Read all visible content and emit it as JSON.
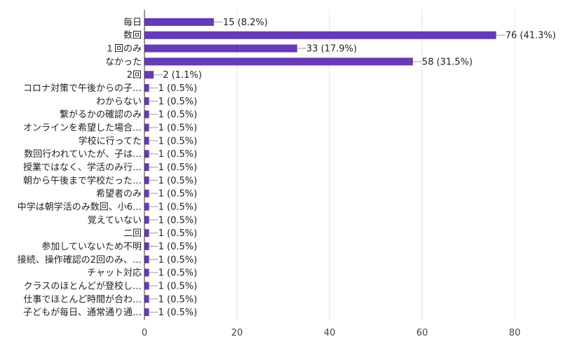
{
  "chart_data": {
    "type": "bar",
    "orientation": "horizontal",
    "title": "",
    "xlabel": "",
    "ylabel": "",
    "xlim": [
      0,
      80
    ],
    "x_ticks": [
      0,
      20,
      40,
      60,
      80
    ],
    "grid": true,
    "bar_color": "#673ab7",
    "categories": [
      "毎日",
      "数回",
      "１回のみ",
      "なかった",
      "2回",
      "コロナ対策で午後からの子…",
      "わからない",
      "繋がるかの確認のみ",
      "オンラインを希望した場合…",
      "学校に行ってた",
      "数回行われていたが、子は…",
      "授業ではなく、学活のみ行…",
      "朝から午後まで学校だった…",
      "希望者のみ",
      "中学は朝学活のみ数回、小6…",
      "覚えていない",
      "二回",
      "参加していないため不明",
      "接続、操作確認の2回のみ、…",
      "チャット対応",
      "クラスのほとんどが登校し…",
      "仕事でほとんど時間が合わ…",
      "子どもが毎日、通常通り通…"
    ],
    "values": [
      15,
      76,
      33,
      58,
      2,
      1,
      1,
      1,
      1,
      1,
      1,
      1,
      1,
      1,
      1,
      1,
      1,
      1,
      1,
      1,
      1,
      1,
      1
    ],
    "value_labels": [
      "15 (8.2%)",
      "76 (41.3%)",
      "33 (17.9%)",
      "58 (31.5%)",
      "2 (1.1%)",
      "1 (0.5%)",
      "1 (0.5%)",
      "1 (0.5%)",
      "1 (0.5%)",
      "1 (0.5%)",
      "1 (0.5%)",
      "1 (0.5%)",
      "1 (0.5%)",
      "1 (0.5%)",
      "1 (0.5%)",
      "1 (0.5%)",
      "1 (0.5%)",
      "1 (0.5%)",
      "1 (0.5%)",
      "1 (0.5%)",
      "1 (0.5%)",
      "1 (0.5%)",
      "1 (0.5%)"
    ]
  }
}
